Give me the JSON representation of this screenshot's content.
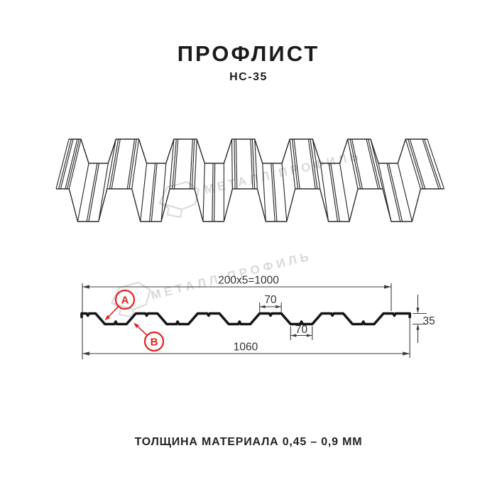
{
  "header": {
    "title": "ПРОФЛИСТ",
    "subtitle": "НС-35"
  },
  "footer": {
    "text": "ТОЛЩИНА МАТЕРИАЛА 0,45 – 0,9 ММ"
  },
  "watermark": {
    "text": "МЕТАЛЛ ПРОФИЛЬ",
    "logo": "metall-profil-logo",
    "color": "#d9d9d9"
  },
  "colors": {
    "accent_red": "#e2231f",
    "line_dark": "#1b1b1b",
    "line_thin": "#3d3d3d"
  },
  "diagram": {
    "views": [
      "3d-perspective-profile",
      "cross-section-with-dimensions"
    ],
    "dims": {
      "module": "200x5=1000",
      "rib_top": "70",
      "rib_bottom": "70",
      "total_width": "1060",
      "height": "35"
    },
    "callouts": {
      "a": "A",
      "b": "B"
    }
  }
}
